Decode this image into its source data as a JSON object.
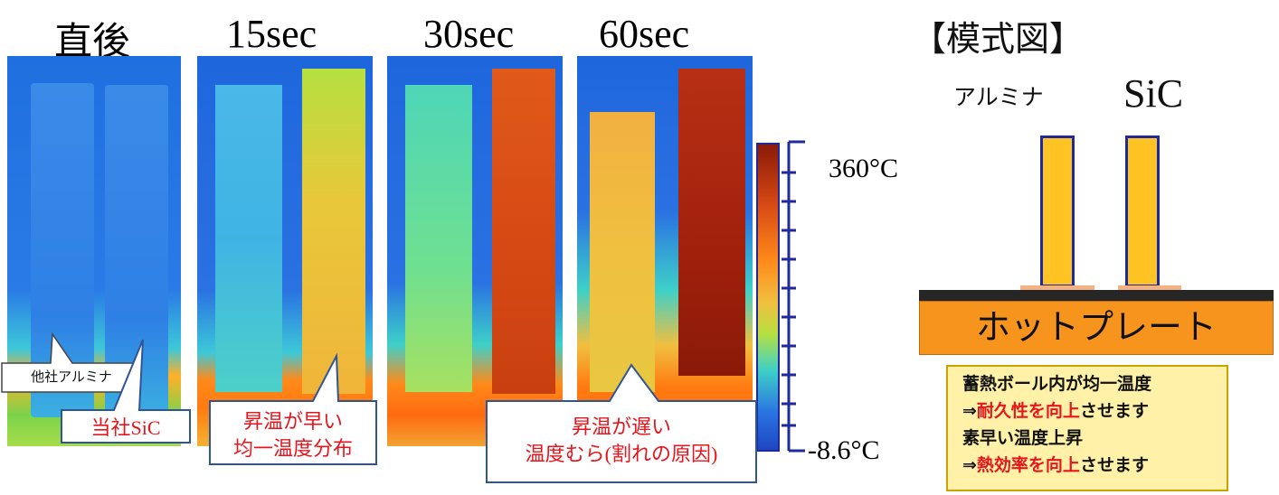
{
  "time_labels": [
    "直後",
    "15sec",
    "30sec",
    "60sec"
  ],
  "scale": {
    "max": "360°C",
    "min": "-8.6°C"
  },
  "schematic": {
    "title": "【模式図】",
    "label_alumina": "アルミナ",
    "label_sic": "SiC",
    "hotplate": "ホットプレート"
  },
  "callouts": {
    "other_alumina": "他社アルミナ",
    "our_sic": "当社SiC",
    "fast_line1": "昇温が早い",
    "fast_line2": "均一温度分布",
    "slow_line1": "昇温が遅い",
    "slow_line2": "温度むら(割れの原因)"
  },
  "note": {
    "line1": "蓄熱ボール内が均一温度",
    "line2_prefix": "⇒",
    "line2_red": "耐久性を向上",
    "line2_suffix": "させます",
    "line3": "素早い温度上昇",
    "line4_prefix": "⇒",
    "line4_red": "熱効率を向上",
    "line4_suffix": "させます"
  },
  "colors": {
    "callout_border": "#2f5597",
    "callout_text": "#e8141b",
    "bar_fill": "#ffc000",
    "hotplate_fill": "#f7941d",
    "note_fill": "#fff2a8",
    "note_border": "#c9a400",
    "scale_blue": "#1f2a9c"
  }
}
